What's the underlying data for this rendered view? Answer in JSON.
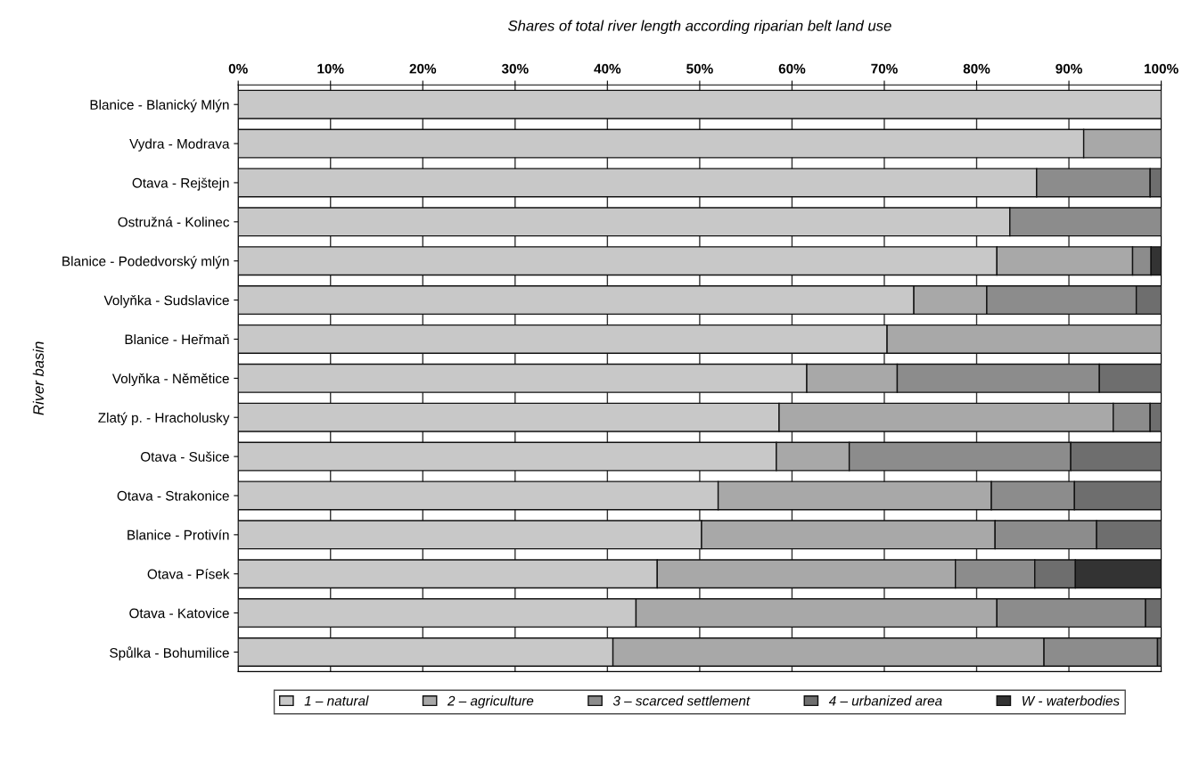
{
  "chart_data": {
    "type": "bar",
    "orientation": "horizontal",
    "stacked": true,
    "title": "Shares of total river length according riparian belt land use",
    "ylabel": "River basin",
    "categories": [
      "Blanice - Blanický Mlýn",
      "Vydra - Modrava",
      "Otava - Rejštejn",
      "Ostružná - Kolinec",
      "Blanice - Podedvorský mlýn",
      "Volyňka - Sudslavice",
      "Blanice - Heřmaň",
      "Volyňka - Němětice",
      "Zlatý p. - Hracholusky",
      "Otava - Sušice",
      "Otava - Strakonice",
      "Blanice - Protivín",
      "Otava - Písek",
      "Otava - Katovice",
      "Spůlka - Bohumilice"
    ],
    "series": [
      {
        "name": "1 – natural",
        "color": "#c8c8c8",
        "values": [
          100,
          91.6,
          86.5,
          83.6,
          82.2,
          73.2,
          70.3,
          61.6,
          58.6,
          58.3,
          52.0,
          50.2,
          45.4,
          43.1,
          40.6
        ]
      },
      {
        "name": "2 – agriculture",
        "color": "#a8a8a8",
        "values": [
          null,
          8.4,
          null,
          null,
          14.7,
          7.9,
          29.7,
          9.8,
          36.2,
          7.9,
          29.6,
          31.8,
          32.3,
          39.1,
          46.7
        ]
      },
      {
        "name": "3 – scarced settlement",
        "color": "#8c8c8c",
        "values": [
          null,
          null,
          12.3,
          16.4,
          2.0,
          16.2,
          null,
          21.9,
          4.0,
          24.0,
          9.0,
          11.0,
          8.6,
          16.1,
          12.3
        ]
      },
      {
        "name": "4 – urbanized area",
        "color": "#6e6e6e",
        "values": [
          null,
          null,
          1.2,
          null,
          null,
          2.7,
          null,
          6.7,
          1.2,
          9.8,
          9.4,
          7.0,
          4.4,
          1.7,
          0.4
        ]
      },
      {
        "name": "W - waterbodies",
        "color": "#333333",
        "values": [
          null,
          null,
          null,
          null,
          1.1,
          null,
          null,
          null,
          null,
          null,
          null,
          null,
          9.3,
          null,
          null
        ]
      }
    ],
    "xlim": [
      0,
      100
    ],
    "xticks": [
      {
        "value": 0,
        "label": "0%"
      },
      {
        "value": 10,
        "label": "10%"
      },
      {
        "value": 20,
        "label": "20%"
      },
      {
        "value": 30,
        "label": "30%"
      },
      {
        "value": 40,
        "label": "40%"
      },
      {
        "value": 50,
        "label": "50%"
      },
      {
        "value": 60,
        "label": "60%"
      },
      {
        "value": 70,
        "label": "70%"
      },
      {
        "value": 80,
        "label": "80%"
      },
      {
        "value": 90,
        "label": "90%"
      },
      {
        "value": 100,
        "label": "100%"
      }
    ],
    "grid": "x",
    "legend": "bottom"
  }
}
